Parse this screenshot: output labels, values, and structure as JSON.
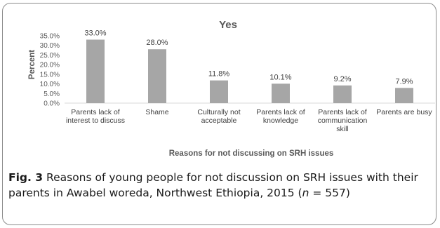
{
  "chart_data": {
    "type": "bar",
    "title": "Yes",
    "xlabel": "Reasons for not discussing on SRH issues",
    "ylabel": "Percent",
    "ylim": [
      0,
      35
    ],
    "yticks": [
      "0.0%",
      "5.0%",
      "10.0%",
      "15.0%",
      "20.0%",
      "25.0%",
      "30.0%",
      "35.0%"
    ],
    "categories": [
      [
        "Parents lack of",
        "interest to discuss"
      ],
      [
        "Shame"
      ],
      [
        "Culturally not",
        "acceptable"
      ],
      [
        "Parents lack of",
        "knowledge"
      ],
      [
        "Parents lack of",
        "communication",
        "skill"
      ],
      [
        "Parents are busy"
      ]
    ],
    "values": [
      33.0,
      28.0,
      11.8,
      10.1,
      9.2,
      7.9
    ],
    "value_labels": [
      "33.0%",
      "28.0%",
      "11.8%",
      "10.1%",
      "9.2%",
      "7.9%"
    ],
    "bar_color": "#a6a6a6",
    "grid": false
  },
  "caption": {
    "fig_label": "Fig. 3",
    "text_before_n": " Reasons of young people for not discussion on SRH issues with their parents in Awabel woreda, Northwest Ethiopia, 2015 (",
    "n_symbol": "n",
    "text_after_n": " = 557)"
  }
}
